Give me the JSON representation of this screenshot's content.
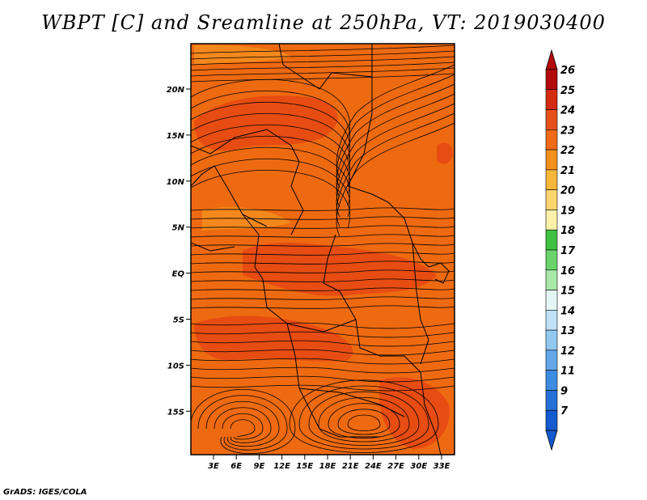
{
  "title": "WBPT [C] and Sreamline at 250hPa, VT: 2019030400",
  "footer": "GrADS: IGES/COLA",
  "map": {
    "lat_ticks": [
      "20N",
      "15N",
      "10N",
      "5N",
      "EQ",
      "5S",
      "10S",
      "15S"
    ],
    "lon_ticks": [
      "3E",
      "6E",
      "9E",
      "12E",
      "15E",
      "18E",
      "21E",
      "24E",
      "27E",
      "30E",
      "33E"
    ],
    "colors": {
      "field_base": "#ee6a10",
      "field_warm": "#e74c12",
      "field_cool": "#f4881c",
      "streamline": "#000000",
      "border": "#000000"
    }
  },
  "colorbar": {
    "labels": [
      "26",
      "25",
      "24",
      "23",
      "22",
      "21",
      "20",
      "19",
      "18",
      "17",
      "16",
      "15",
      "14",
      "13",
      "12",
      "11",
      "9",
      "7"
    ],
    "colors": [
      "#b40a0a",
      "#d42c10",
      "#e8501a",
      "#f06a18",
      "#f5901c",
      "#f8b63a",
      "#fbd46e",
      "#fdf0a8",
      "#40c040",
      "#6ad46a",
      "#a8e8a8",
      "#e4f6f4",
      "#c0e0f8",
      "#90c8f0",
      "#64a8ea",
      "#3c8ce2",
      "#2470d8",
      "#145ad0"
    ]
  }
}
